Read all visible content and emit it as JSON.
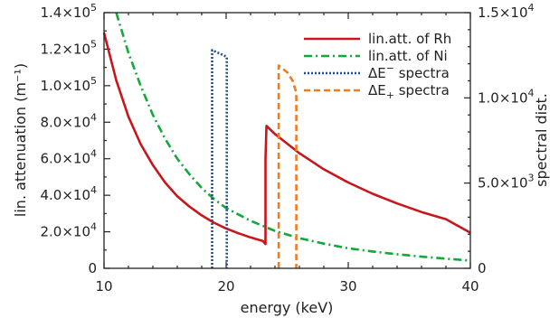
{
  "chart_data": {
    "type": "line",
    "xlabel": "energy (keV)",
    "ylabel": "lin. attenuation (m⁻¹)",
    "y2label": "spectral dist.",
    "xlim": [
      10,
      40
    ],
    "ylim": [
      0,
      140000
    ],
    "y2lim": [
      0,
      15000
    ],
    "x_ticks": [
      {
        "value": 10,
        "label": "10"
      },
      {
        "value": 20,
        "label": "20"
      },
      {
        "value": 30,
        "label": "30"
      },
      {
        "value": 40,
        "label": "40"
      }
    ],
    "y_ticks": [
      {
        "value": 0,
        "label": "0",
        "base": "0",
        "sup": ""
      },
      {
        "value": 20000,
        "label": "2.0×10⁴",
        "base": "2.0×10",
        "sup": "4"
      },
      {
        "value": 40000,
        "label": "4.0×10⁴",
        "base": "4.0×10",
        "sup": "4"
      },
      {
        "value": 60000,
        "label": "6.0×10⁴",
        "base": "6.0×10",
        "sup": "4"
      },
      {
        "value": 80000,
        "label": "8.0×10⁴",
        "base": "8.0×10",
        "sup": "4"
      },
      {
        "value": 100000,
        "label": "1.0×10⁵",
        "base": "1.0×10",
        "sup": "5"
      },
      {
        "value": 120000,
        "label": "1.2×10⁵",
        "base": "1.2×10",
        "sup": "5"
      },
      {
        "value": 140000,
        "label": "1.4×10⁵",
        "base": "1.4×10",
        "sup": "5"
      }
    ],
    "y2_ticks": [
      {
        "value": 0,
        "label": "0",
        "base": "0",
        "sup": ""
      },
      {
        "value": 5000,
        "label": "5.0×10³",
        "base": "5.0×10",
        "sup": "3"
      },
      {
        "value": 10000,
        "label": "1.0×10⁴",
        "base": "1.0×10",
        "sup": "4"
      },
      {
        "value": 15000,
        "label": "1.5×10⁴",
        "base": "1.5×10",
        "sup": "4"
      }
    ],
    "legend_position": "top-right",
    "series": [
      {
        "name": "lin.att. of Rh",
        "legend_main": "lin.att. of Rh",
        "legend_sub": "",
        "legend_sup": "",
        "legend_tail": "",
        "axis": "left",
        "color": "#c8171c",
        "dash": "solid",
        "points": [
          [
            10,
            129000
          ],
          [
            11,
            103000
          ],
          [
            12,
            83000
          ],
          [
            13,
            68000
          ],
          [
            14,
            56500
          ],
          [
            15,
            47000
          ],
          [
            16,
            39500
          ],
          [
            17,
            33800
          ],
          [
            18,
            29000
          ],
          [
            19,
            25000
          ],
          [
            20,
            21800
          ],
          [
            21,
            19200
          ],
          [
            22,
            16900
          ],
          [
            23.0,
            15000
          ],
          [
            23.22,
            13300
          ],
          [
            23.22,
            60000
          ],
          [
            23.3,
            78000
          ],
          [
            24,
            73500
          ],
          [
            26,
            63000
          ],
          [
            28,
            54200
          ],
          [
            30,
            47000
          ],
          [
            32,
            40800
          ],
          [
            34,
            35500
          ],
          [
            36,
            30800
          ],
          [
            38,
            26900
          ],
          [
            40,
            19500
          ]
        ]
      },
      {
        "name": "lin.att. of Ni",
        "legend_main": "lin.att. of Ni",
        "legend_sub": "",
        "legend_sup": "",
        "legend_tail": "",
        "axis": "left",
        "color": "#12a83a",
        "dash": "9,4,2,4",
        "points": [
          [
            11,
            140000
          ],
          [
            12,
            118000
          ],
          [
            13,
            100000
          ],
          [
            14,
            84000
          ],
          [
            15,
            71000
          ],
          [
            16,
            60000
          ],
          [
            17,
            51500
          ],
          [
            18,
            44000
          ],
          [
            19,
            38000
          ],
          [
            20,
            33000
          ],
          [
            22,
            26000
          ],
          [
            24,
            20500
          ],
          [
            26,
            16500
          ],
          [
            28,
            13500
          ],
          [
            30,
            11000
          ],
          [
            32,
            9200
          ],
          [
            34,
            7700
          ],
          [
            36,
            6400
          ],
          [
            38,
            5300
          ],
          [
            40,
            4200
          ]
        ]
      },
      {
        "name": "ΔE− spectra",
        "legend_main": "ΔE",
        "legend_sub": "",
        "legend_sup": "−",
        "legend_tail": " spectra",
        "axis": "right",
        "color": "#1f4e9c",
        "dash": "2,2",
        "points": [
          [
            18.85,
            0
          ],
          [
            18.85,
            12800
          ],
          [
            19.8,
            12500
          ],
          [
            20.05,
            12400
          ],
          [
            20.05,
            0
          ]
        ]
      },
      {
        "name": "ΔE+ spectra",
        "legend_main": "ΔE",
        "legend_sub": "+",
        "legend_sup": "",
        "legend_tail": " spectra",
        "axis": "right",
        "color": "#ee7d22",
        "dash": "7,4",
        "points": [
          [
            24.3,
            0
          ],
          [
            24.3,
            11900
          ],
          [
            25.0,
            11500
          ],
          [
            25.45,
            11000
          ],
          [
            25.75,
            10300
          ],
          [
            25.75,
            0
          ]
        ]
      }
    ]
  }
}
